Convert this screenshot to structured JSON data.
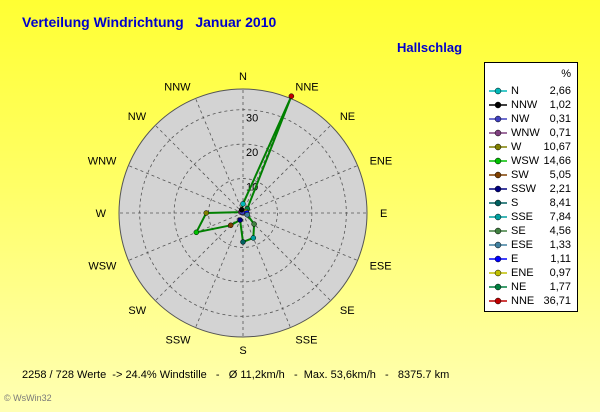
{
  "title": "Verteilung Windrichtung   Januar 2010",
  "station": "Hallschlag",
  "footer": "2258 / 728 Werte  -> 24.4% Windstille   -   Ø 11,2km/h   -  Max. 53,6km/h   -   8375.7 km",
  "copyright": "© WsWin32",
  "legend_header": "%",
  "chart_data": {
    "type": "radar",
    "title": "Verteilung Windrichtung   Januar 2010",
    "subtitle": "Hallschlag",
    "unit": "%",
    "rmax": 36,
    "ring_labels": [
      "10",
      "20",
      "30"
    ],
    "ring_values": [
      10,
      20,
      30
    ],
    "rings_dashed": true,
    "background": "#d3d3d3",
    "line_color": "#008000",
    "directions": [
      "N",
      "NNE",
      "NE",
      "ENE",
      "E",
      "ESE",
      "SE",
      "SSE",
      "S",
      "SSW",
      "SW",
      "WSW",
      "W",
      "WNW",
      "NW",
      "NNW"
    ],
    "values": [
      2.66,
      36.71,
      1.77,
      0.97,
      1.11,
      1.33,
      4.56,
      7.84,
      8.41,
      2.21,
      5.05,
      14.66,
      10.67,
      0.71,
      0.31,
      1.02
    ],
    "legend": [
      {
        "name": "N",
        "value": "2,66",
        "color": "#00b8b8"
      },
      {
        "name": "NNW",
        "value": "1,02",
        "color": "#000000"
      },
      {
        "name": "NW",
        "value": "0,31",
        "color": "#4040c0"
      },
      {
        "name": "WNW",
        "value": "0,71",
        "color": "#804080"
      },
      {
        "name": "W",
        "value": "10,67",
        "color": "#808000"
      },
      {
        "name": "WSW",
        "value": "14,66",
        "color": "#00c000"
      },
      {
        "name": "SW",
        "value": "5,05",
        "color": "#804000"
      },
      {
        "name": "SSW",
        "value": "2,21",
        "color": "#000080"
      },
      {
        "name": "S",
        "value": "8,41",
        "color": "#006060"
      },
      {
        "name": "SSE",
        "value": "7,84",
        "color": "#00a0a0"
      },
      {
        "name": "SE",
        "value": "4,56",
        "color": "#408040"
      },
      {
        "name": "ESE",
        "value": "1,33",
        "color": "#4080a0"
      },
      {
        "name": "E",
        "value": "1,11",
        "color": "#0000ff"
      },
      {
        "name": "ENE",
        "value": "0,97",
        "color": "#c0c000"
      },
      {
        "name": "NE",
        "value": "1,77",
        "color": "#008040"
      },
      {
        "name": "NNE",
        "value": "36,71",
        "color": "#c00000"
      }
    ]
  }
}
